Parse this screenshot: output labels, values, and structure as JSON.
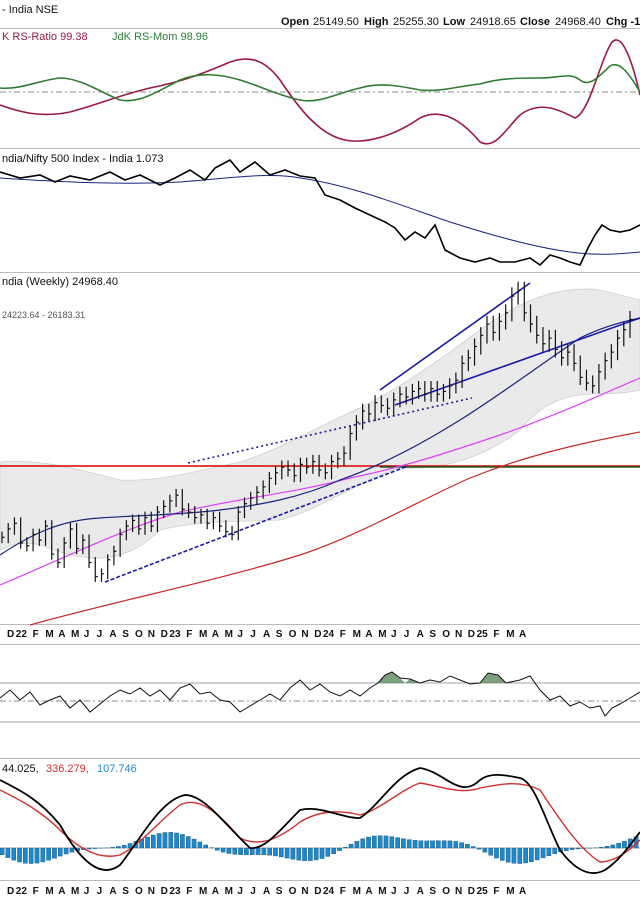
{
  "header": {
    "title": "- India NSE",
    "open_label": "Open",
    "open_value": "25149.50",
    "high_label": "High",
    "high_value": "25255.30",
    "low_label": "Low",
    "low_value": "24918.65",
    "close_label": "Close",
    "close_value": "24968.40",
    "chg_label": "Chg -1"
  },
  "panels": {
    "rrg": {
      "legend_a": "K RS-Ratio 99.38",
      "legend_b": "JdK RS-Mom 98.96",
      "color_ratio": "#9b1b3f",
      "color_mom": "#2e7d32"
    },
    "relative": {
      "legend": "ndia/Nifty 500 Index - India 1.073",
      "color_price": "#000000",
      "color_ma": "#1a237e"
    },
    "main": {
      "legend": "ndia (Weekly) 24968.40",
      "band_label": "24223.64 - 26183.31",
      "color_resistance": "#d50000",
      "color_support": "#1b5e20",
      "color_trend": "#1a1aa8",
      "color_ma_short": "#1a237e",
      "color_ma_mid": "#e040fb",
      "color_ma_long": "#c62828"
    },
    "macd": {
      "legend_a": "44.025,",
      "legend_b": "336.279,",
      "legend_c": "107.746",
      "color_a": "#000000",
      "color_b": "#d32f2f",
      "color_c": "#1e88c9"
    }
  },
  "x_axis": {
    "labels": [
      "D",
      "22",
      "F",
      "M",
      "A",
      "M",
      "J",
      "J",
      "A",
      "S",
      "O",
      "N",
      "D",
      "23",
      "F",
      "M",
      "A",
      "M",
      "J",
      "J",
      "A",
      "S",
      "O",
      "N",
      "D",
      "24",
      "F",
      "M",
      "A",
      "M",
      "J",
      "J",
      "A",
      "S",
      "O",
      "N",
      "D",
      "25",
      "F",
      "M",
      "A"
    ]
  },
  "chart_data": {
    "type": "line",
    "title": "",
    "ohlc_latest": {
      "open": 25149.5,
      "high": 25255.3,
      "low": 24918.65,
      "close": 24968.4
    },
    "weekly_close": [
      17200,
      17500,
      17700,
      17000,
      16900,
      17300,
      17100,
      17600,
      16600,
      16300,
      17000,
      17500,
      16800,
      17100,
      16300,
      15800,
      15900,
      16400,
      16700,
      17300,
      17600,
      17800,
      17500,
      17900,
      17600,
      18100,
      18300,
      18500,
      18700,
      18200,
      18100,
      17900,
      18000,
      17700,
      17900,
      17600,
      17400,
      17300,
      18100,
      18400,
      18600,
      18800,
      19000,
      19300,
      19500,
      19700,
      19600,
      19400,
      19800,
      19700,
      19900,
      19600,
      19500,
      19900,
      20000,
      20200,
      20900,
      21300,
      21700,
      21600,
      22000,
      21900,
      21800,
      22100,
      22300,
      22200,
      22400,
      22500,
      22300,
      22500,
      22300,
      22400,
      22600,
      22800,
      23400,
      23600,
      24000,
      24400,
      24800,
      24500,
      24900,
      25200,
      25800,
      26000,
      25200,
      24800,
      24400,
      24100,
      24300,
      23900,
      23600,
      23800,
      23400,
      22900,
      22700,
      22600,
      23100,
      23500,
      23800,
      24300,
      24600,
      24968
    ],
    "resistance_level": 18887,
    "support_level": 18887,
    "rs_ratio_latest": 99.38,
    "rs_mom_latest": 98.96,
    "relative_latest": 1.073,
    "macd_values": [
      44.025,
      336.279,
      107.746
    ]
  }
}
